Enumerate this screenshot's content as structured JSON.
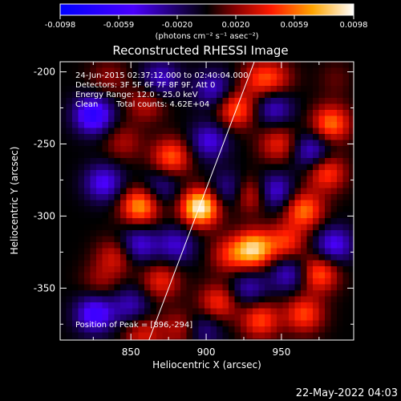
{
  "chart_data": {
    "type": "heatmap",
    "title": "Reconstructed RHESSI Image",
    "xlabel": "Heliocentric X (arcsec)",
    "ylabel": "Heliocentric Y (arcsec)",
    "xlim": [
      803,
      998
    ],
    "ylim": [
      -386,
      -193
    ],
    "x_ticks": [
      850,
      900,
      950
    ],
    "y_ticks": [
      -200,
      -250,
      -300,
      -350
    ],
    "colorbar": {
      "colormap": "rhessi-hot",
      "range": [
        -0.0098,
        0.0098
      ],
      "ticks": [
        "-0.0098",
        "-0.0059",
        "-0.0020",
        "0.0020",
        "0.0059",
        "0.0098"
      ],
      "label": "(photons cm⁻² s⁻¹ asec⁻²)"
    },
    "annotations": {
      "time": "24-Jun-2015 02:37:12.000 to 02:40:04.000",
      "detectors": "Detectors: 3F 5F 6F 7F 8F 9F, Att 0",
      "energy": "Energy Range: 12.0 - 25.0 keV",
      "clean": "Clean",
      "counts": "Total counts: 4.62E+04",
      "peak": "Position of Peak = [896,-294]"
    },
    "limb_line": [
      [
        862,
        -386
      ],
      [
        932,
        -193
      ]
    ],
    "peaks": [
      {
        "x": 896,
        "y": -294,
        "value": 0.0098
      },
      {
        "x": 932,
        "y": -323,
        "value": 0.008
      },
      {
        "x": 856,
        "y": -293,
        "value": 0.007
      },
      {
        "x": 920,
        "y": -226,
        "value": 0.0055
      },
      {
        "x": 877,
        "y": -259,
        "value": 0.0055
      },
      {
        "x": 983,
        "y": -236,
        "value": 0.006
      },
      {
        "x": 965,
        "y": -296,
        "value": 0.006
      },
      {
        "x": 980,
        "y": -270,
        "value": 0.005
      },
      {
        "x": 975,
        "y": -340,
        "value": 0.0055
      },
      {
        "x": 965,
        "y": -368,
        "value": 0.005
      },
      {
        "x": 953,
        "y": -318,
        "value": 0.0045
      },
      {
        "x": 936,
        "y": -372,
        "value": 0.005
      },
      {
        "x": 908,
        "y": -360,
        "value": 0.0045
      },
      {
        "x": 930,
        "y": -285,
        "value": 0.0045
      },
      {
        "x": 916,
        "y": -327,
        "value": 0.004
      },
      {
        "x": 948,
        "y": -250,
        "value": 0.004
      },
      {
        "x": 870,
        "y": -345,
        "value": 0.004
      },
      {
        "x": 840,
        "y": -328,
        "value": 0.0035
      },
      {
        "x": 858,
        "y": -382,
        "value": 0.0035
      },
      {
        "x": 883,
        "y": -378,
        "value": 0.003
      },
      {
        "x": 990,
        "y": -205,
        "value": 0.004
      },
      {
        "x": 935,
        "y": -205,
        "value": 0.0035
      },
      {
        "x": 860,
        "y": -222,
        "value": 0.003
      },
      {
        "x": 835,
        "y": -204,
        "value": 0.002
      },
      {
        "x": 845,
        "y": -249,
        "value": 0.0025
      },
      {
        "x": 830,
        "y": -345,
        "value": 0.002
      },
      {
        "x": 946,
        "y": -205,
        "value": 0.003
      },
      {
        "x": 825,
        "y": -230,
        "value": -0.007
      },
      {
        "x": 832,
        "y": -277,
        "value": -0.005
      },
      {
        "x": 826,
        "y": -368,
        "value": -0.006
      },
      {
        "x": 855,
        "y": -320,
        "value": -0.0045
      },
      {
        "x": 870,
        "y": -205,
        "value": -0.004
      },
      {
        "x": 880,
        "y": -320,
        "value": -0.004
      },
      {
        "x": 902,
        "y": -248,
        "value": -0.0045
      },
      {
        "x": 870,
        "y": -280,
        "value": -0.003
      },
      {
        "x": 905,
        "y": -212,
        "value": -0.004
      },
      {
        "x": 915,
        "y": -282,
        "value": -0.0035
      },
      {
        "x": 945,
        "y": -283,
        "value": -0.005
      },
      {
        "x": 955,
        "y": -340,
        "value": -0.004
      },
      {
        "x": 945,
        "y": -225,
        "value": -0.004
      },
      {
        "x": 970,
        "y": -255,
        "value": -0.0045
      },
      {
        "x": 985,
        "y": -320,
        "value": -0.005
      },
      {
        "x": 992,
        "y": -205,
        "value": -0.003
      },
      {
        "x": 928,
        "y": -350,
        "value": -0.0035
      },
      {
        "x": 898,
        "y": -378,
        "value": -0.003
      },
      {
        "x": 850,
        "y": -362,
        "value": -0.0035
      }
    ]
  },
  "footer": {
    "timestamp": "22-May-2022 04:03"
  }
}
